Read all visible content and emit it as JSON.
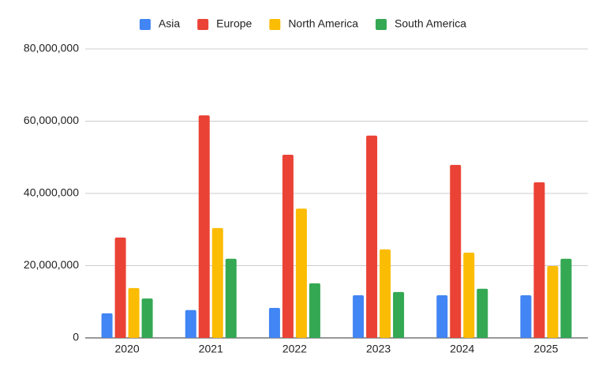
{
  "chart_data": {
    "type": "bar",
    "categories": [
      "2020",
      "2021",
      "2022",
      "2023",
      "2024",
      "2025"
    ],
    "series": [
      {
        "name": "Asia",
        "color": "#4285f4",
        "values": [
          6800000,
          7700000,
          8300000,
          11800000,
          11800000,
          11800000
        ]
      },
      {
        "name": "Europe",
        "color": "#ea4335",
        "values": [
          27800000,
          61600000,
          50700000,
          56000000,
          47900000,
          43100000
        ]
      },
      {
        "name": "North America",
        "color": "#fbbc04",
        "values": [
          13800000,
          30400000,
          35800000,
          24500000,
          23600000,
          19900000
        ]
      },
      {
        "name": "South America",
        "color": "#34a853",
        "values": [
          10900000,
          21900000,
          15100000,
          12700000,
          13600000,
          21900000
        ]
      }
    ],
    "ylim": [
      0,
      80000000
    ],
    "yticks": [
      0,
      {
        "value": 20000000,
        "label": "20,000,000"
      },
      {
        "value": 40000000,
        "label": "40,000,000"
      },
      {
        "value": 60000000,
        "label": "60,000,000"
      },
      {
        "value": 80000000,
        "label": "80,000,000"
      }
    ],
    "grid": true,
    "legend": "top"
  }
}
